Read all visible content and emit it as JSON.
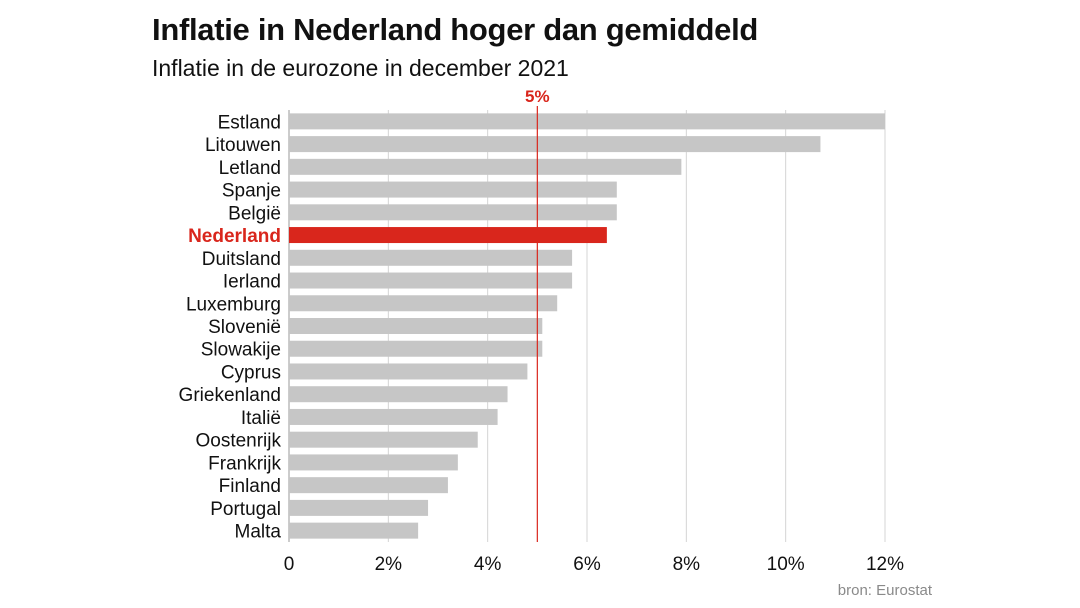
{
  "title": "Inflatie in Nederland hoger dan gemiddeld",
  "subtitle": "Inflatie in de eurozone in december 2021",
  "source": "bron: Eurostat",
  "colors": {
    "bar": "#c6c6c6",
    "highlight": "#d9261c",
    "grid": "#d4d4d4",
    "reference": "#d9261c"
  },
  "chart_data": {
    "type": "bar",
    "orientation": "horizontal",
    "title": "Inflatie in Nederland hoger dan gemiddeld",
    "subtitle": "Inflatie in de eurozone in december 2021",
    "categories": [
      "Estland",
      "Litouwen",
      "Letland",
      "Spanje",
      "België",
      "Nederland",
      "Duitsland",
      "Ierland",
      "Luxemburg",
      "Slovenië",
      "Slowakije",
      "Cyprus",
      "Griekenland",
      "Italië",
      "Oostenrijk",
      "Frankrijk",
      "Finland",
      "Portugal",
      "Malta"
    ],
    "values": [
      12.0,
      10.7,
      7.9,
      6.6,
      6.6,
      6.4,
      5.7,
      5.7,
      5.4,
      5.1,
      5.1,
      4.8,
      4.4,
      4.2,
      3.8,
      3.4,
      3.2,
      2.8,
      2.6
    ],
    "highlight": "Nederland",
    "xlim": [
      0,
      12
    ],
    "xticks": [
      0,
      2,
      4,
      6,
      8,
      10,
      12
    ],
    "xtick_labels": [
      "0",
      "2%",
      "4%",
      "6%",
      "8%",
      "10%",
      "12%"
    ],
    "reference_line": {
      "value": 5,
      "label": "5%"
    },
    "grid": "vertical",
    "xlabel": "",
    "ylabel": ""
  }
}
